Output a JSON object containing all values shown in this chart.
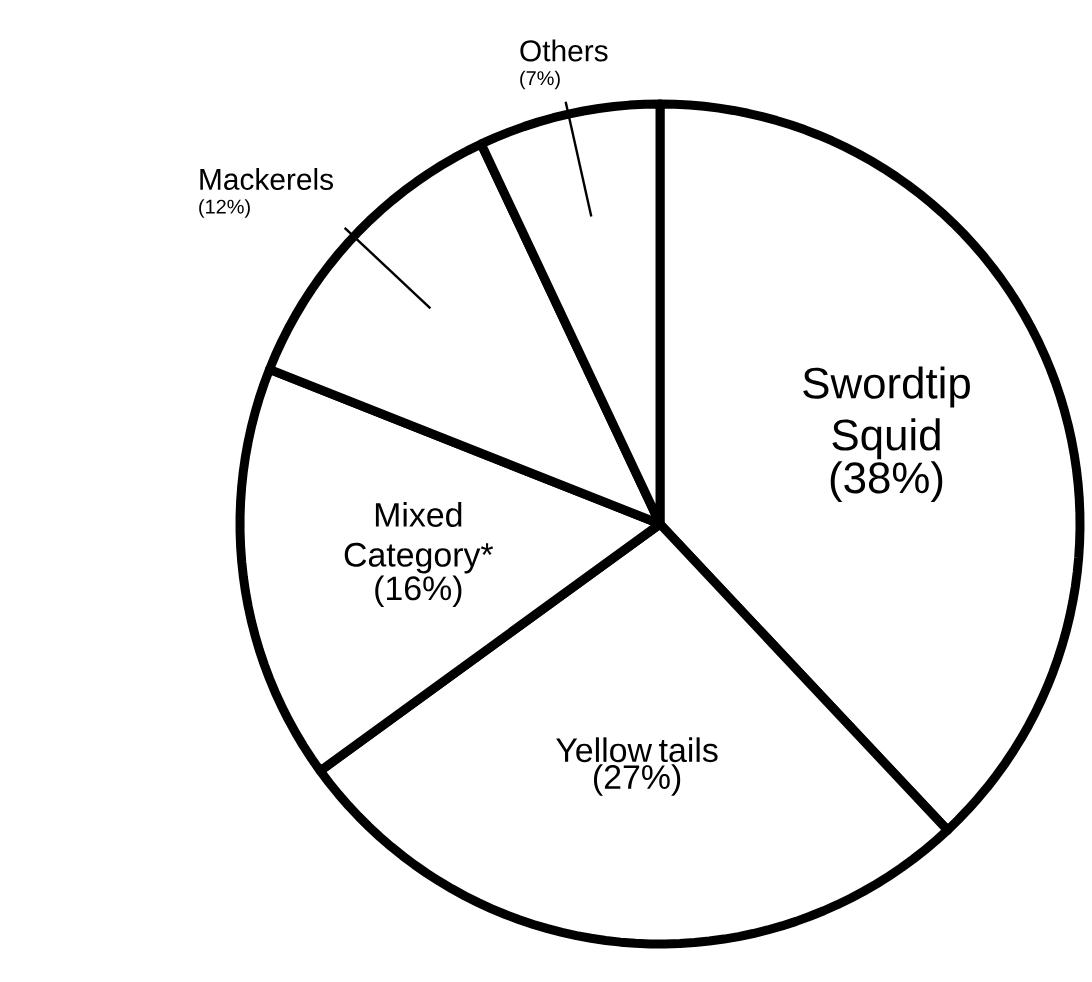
{
  "chart_data": {
    "type": "pie",
    "categories": [
      "Swordtip Squid",
      "Yellow tails",
      "Mixed Category*",
      "Mackerels",
      "Others"
    ],
    "values": [
      38,
      27,
      16,
      12,
      7
    ],
    "value_labels": [
      "(38%)",
      "(27%)",
      "(16%)",
      "(12%)",
      "(7%)"
    ],
    "colors": [
      "#ffffff",
      "#ffffff",
      "#ffffff",
      "#ffffff",
      "#ffffff"
    ]
  }
}
